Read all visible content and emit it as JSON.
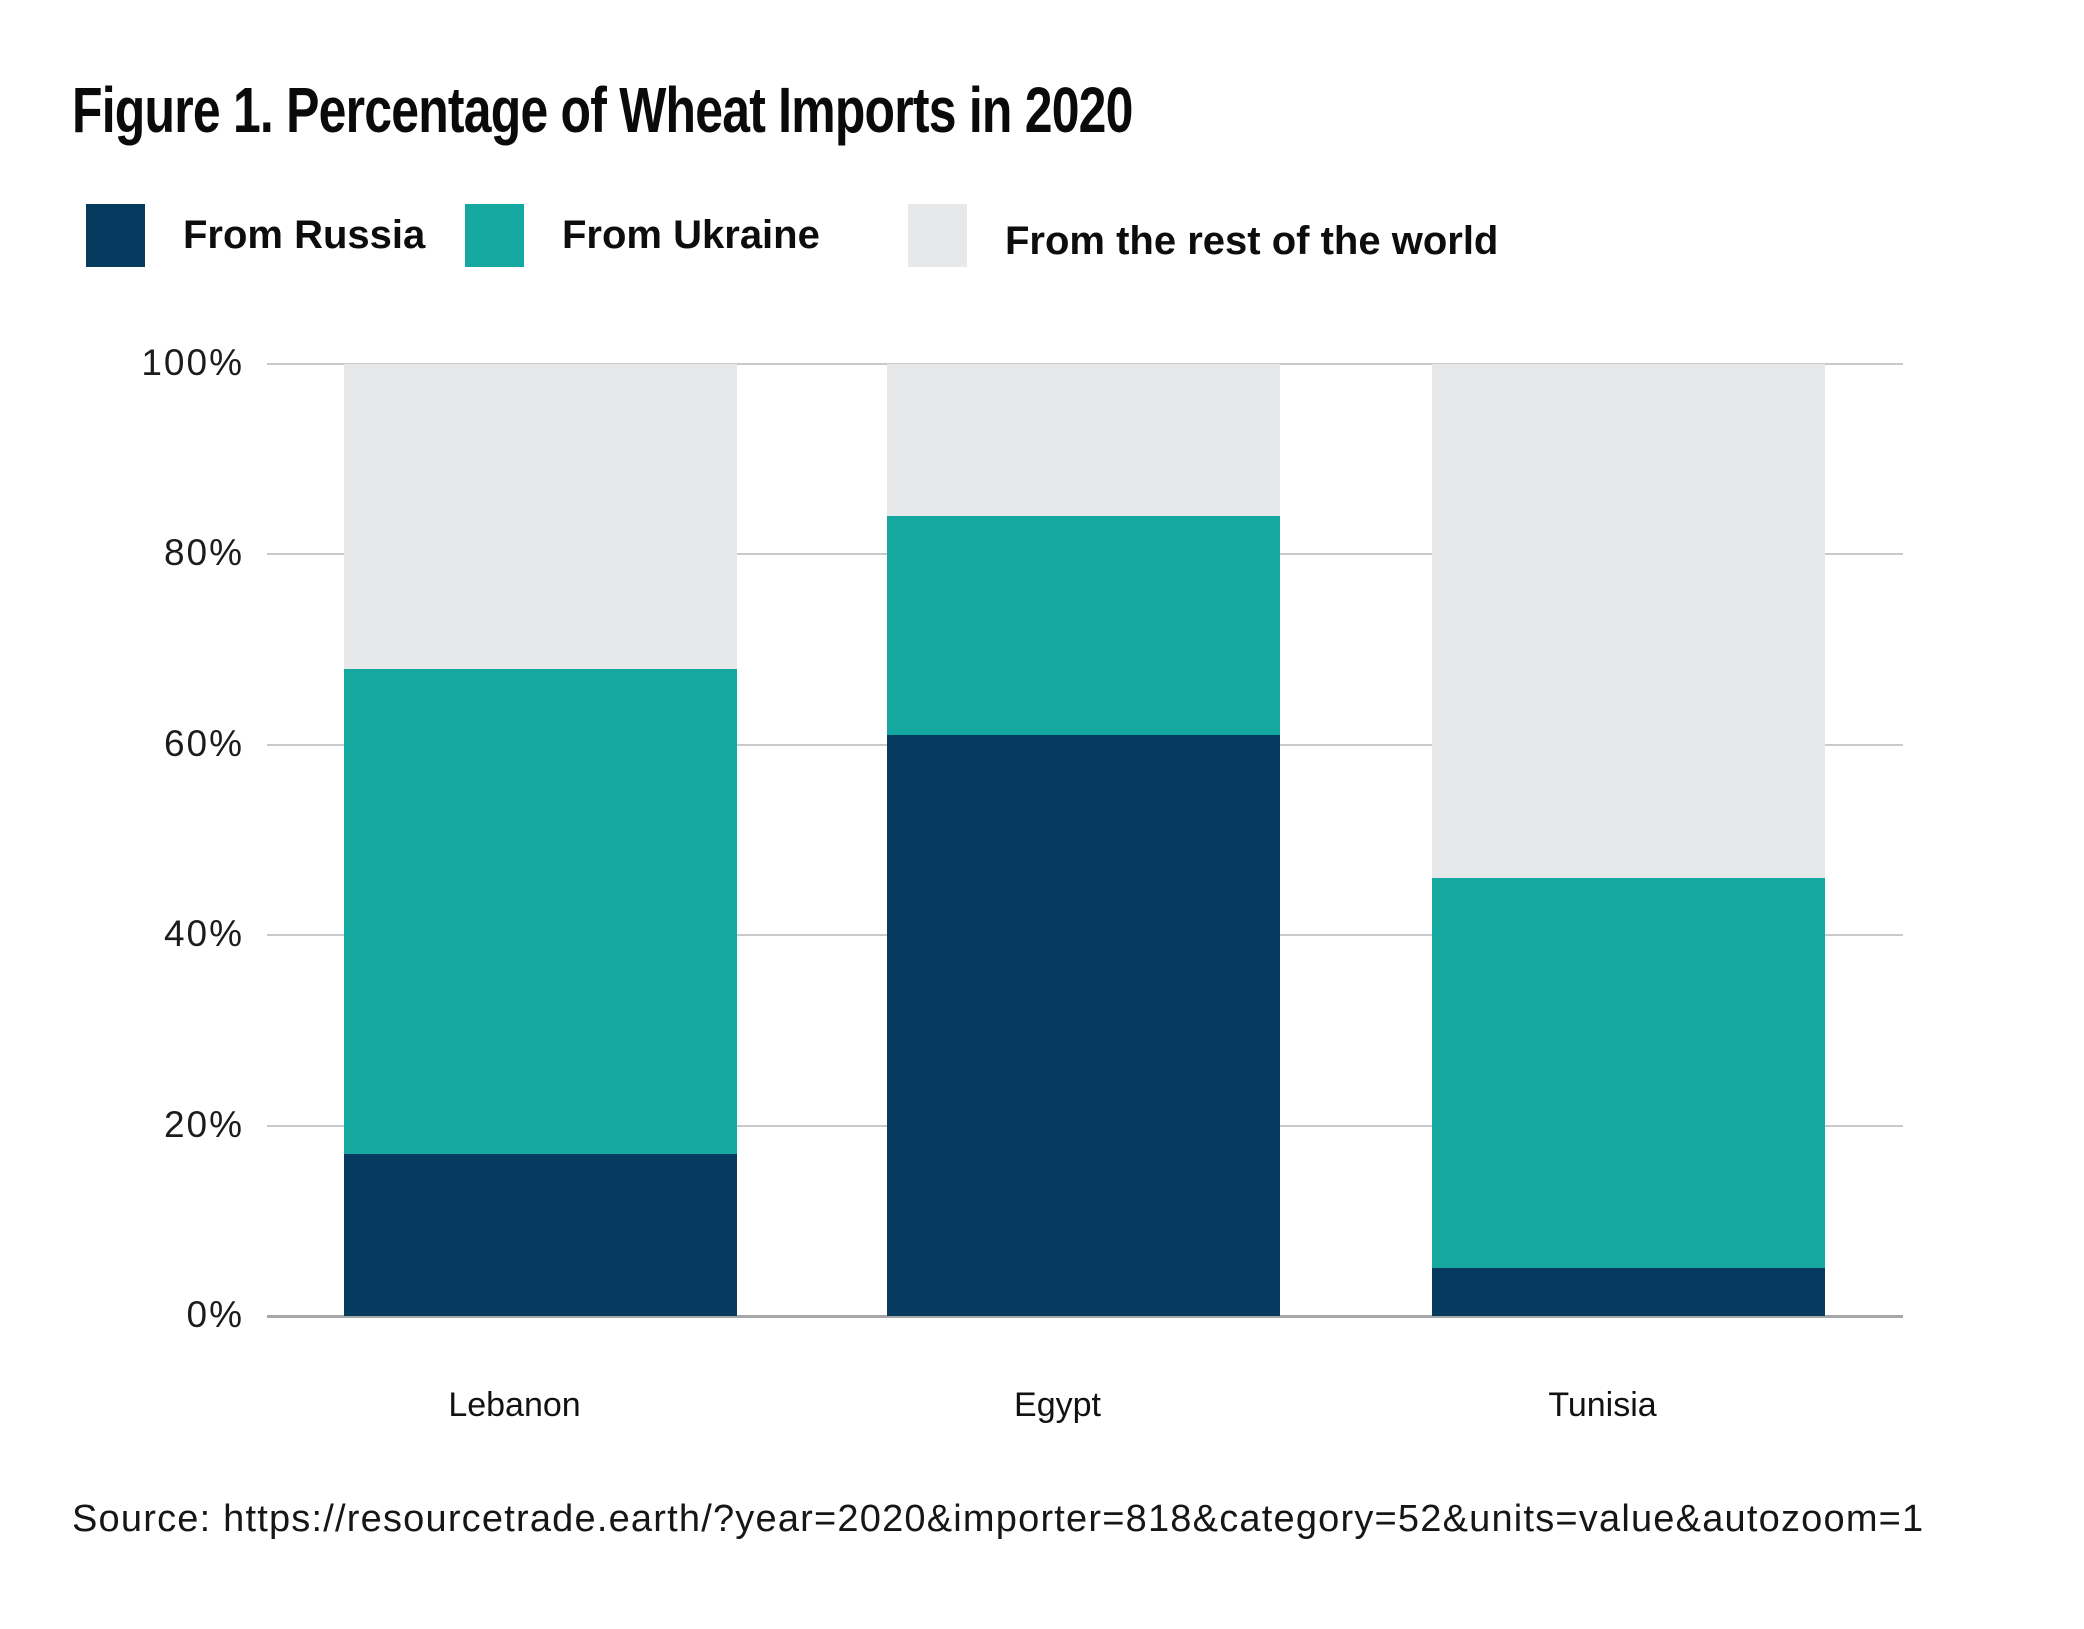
{
  "chart_data": {
    "type": "bar",
    "stacked": true,
    "title": "Figure 1. Percentage of Wheat Imports in 2020",
    "categories": [
      "Lebanon",
      "Egypt",
      "Tunisia"
    ],
    "series": [
      {
        "name": "From Russia",
        "key": "russia",
        "color": "#063a5e",
        "values": [
          17,
          61,
          5
        ]
      },
      {
        "name": "From Ukraine",
        "key": "ukraine",
        "color": "#15a8a0",
        "values": [
          51,
          23,
          41
        ]
      },
      {
        "name": "From the rest of the world",
        "key": "rest",
        "color": "#e6e8e9",
        "values": [
          32,
          16,
          54
        ]
      }
    ],
    "ylabel": "",
    "xlabel": "",
    "ylim": [
      0,
      100
    ],
    "yticks": [
      100,
      80,
      60,
      40,
      20,
      0
    ],
    "ytick_suffix": "%",
    "grid": true,
    "legend_position": "top"
  },
  "source_note": "Source: https://resourcetrade.earth/?year=2020&importer=818&category=52&units=value&autozoom=1"
}
